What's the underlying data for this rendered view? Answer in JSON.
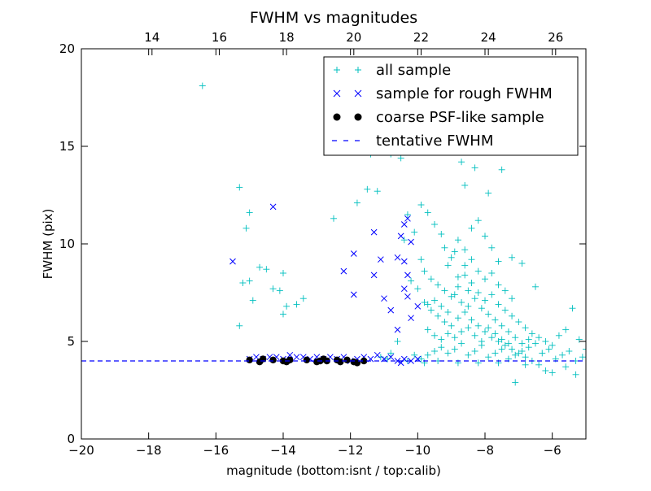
{
  "chart_data": {
    "type": "scatter",
    "title": "FWHM vs magnitudes",
    "xlabel": "magnitude (bottom:isnt / top:calib)",
    "ylabel": "FWHM (pix)",
    "xlim": [
      -20,
      -5
    ],
    "ylim": [
      0,
      20
    ],
    "x_ticks": [
      -20,
      -18,
      -16,
      -14,
      -12,
      -10,
      -8,
      -6
    ],
    "x_tick_labels": [
      "−20",
      "−18",
      "−16",
      "−14",
      "−12",
      "−10",
      "−8",
      "−6"
    ],
    "y_ticks": [
      0,
      5,
      10,
      15,
      20
    ],
    "y_tick_labels": [
      "0",
      "5",
      "10",
      "15",
      "20"
    ],
    "top_axis": {
      "ticks": [
        14,
        16,
        18,
        20,
        22,
        24,
        26
      ],
      "tick_labels": [
        "14",
        "16",
        "18",
        "20",
        "22",
        "24",
        "26"
      ],
      "offset": 31.9
    },
    "grid": false,
    "legend_position": "top-right",
    "colors": {
      "all": "#00bfbf",
      "rough": "#0000ff",
      "coarse": "#000000",
      "tentative": "#0000ff"
    },
    "series": [
      {
        "name": "all sample",
        "marker": "plus",
        "color": "#00bfbf",
        "points": [
          [
            -16.4,
            18.1
          ],
          [
            -15.3,
            12.9
          ],
          [
            -15.0,
            11.6
          ],
          [
            -15.1,
            10.8
          ],
          [
            -15.0,
            8.1
          ],
          [
            -15.2,
            8.0
          ],
          [
            -14.7,
            8.8
          ],
          [
            -14.5,
            8.7
          ],
          [
            -14.9,
            7.1
          ],
          [
            -15.3,
            5.8
          ],
          [
            -14.3,
            7.7
          ],
          [
            -14.1,
            7.6
          ],
          [
            -14.0,
            8.5
          ],
          [
            -13.9,
            6.8
          ],
          [
            -13.6,
            6.9
          ],
          [
            -13.4,
            7.2
          ],
          [
            -14.0,
            6.4
          ],
          [
            -12.5,
            11.3
          ],
          [
            -11.8,
            12.1
          ],
          [
            -11.5,
            12.8
          ],
          [
            -11.2,
            12.7
          ],
          [
            -11.4,
            14.6
          ],
          [
            -10.8,
            14.6
          ],
          [
            -10.5,
            14.4
          ],
          [
            -10.6,
            15.1
          ],
          [
            -9.4,
            18.0
          ],
          [
            -9.1,
            16.8
          ],
          [
            -9.0,
            14.9
          ],
          [
            -8.5,
            15.8
          ],
          [
            -8.2,
            15.0
          ],
          [
            -8.7,
            14.2
          ],
          [
            -8.3,
            13.9
          ],
          [
            -7.5,
            13.8
          ],
          [
            -7.9,
            12.6
          ],
          [
            -8.6,
            13.0
          ],
          [
            -10.3,
            11.5
          ],
          [
            -10.4,
            10.2
          ],
          [
            -10.1,
            10.6
          ],
          [
            -9.9,
            12.0
          ],
          [
            -9.7,
            11.6
          ],
          [
            -9.5,
            11.0
          ],
          [
            -9.3,
            10.5
          ],
          [
            -9.2,
            9.8
          ],
          [
            -9.0,
            9.3
          ],
          [
            -8.8,
            10.2
          ],
          [
            -8.6,
            9.7
          ],
          [
            -8.4,
            10.8
          ],
          [
            -8.2,
            11.2
          ],
          [
            -8.0,
            10.4
          ],
          [
            -7.8,
            9.8
          ],
          [
            -7.6,
            9.1
          ],
          [
            -7.2,
            9.3
          ],
          [
            -6.9,
            9.0
          ],
          [
            -6.5,
            7.8
          ],
          [
            -9.9,
            9.2
          ],
          [
            -9.8,
            8.6
          ],
          [
            -9.6,
            8.2
          ],
          [
            -9.4,
            7.9
          ],
          [
            -9.2,
            7.6
          ],
          [
            -9.0,
            7.3
          ],
          [
            -8.8,
            7.8
          ],
          [
            -8.6,
            8.4
          ],
          [
            -8.4,
            8.0
          ],
          [
            -8.2,
            7.5
          ],
          [
            -8.0,
            7.1
          ],
          [
            -7.8,
            7.4
          ],
          [
            -7.6,
            6.9
          ],
          [
            -7.4,
            6.6
          ],
          [
            -7.2,
            6.3
          ],
          [
            -7.0,
            6.0
          ],
          [
            -6.8,
            5.7
          ],
          [
            -6.6,
            5.4
          ],
          [
            -6.4,
            5.2
          ],
          [
            -6.2,
            5.0
          ],
          [
            -6.0,
            4.8
          ],
          [
            -5.8,
            5.3
          ],
          [
            -5.6,
            5.6
          ],
          [
            -5.4,
            6.7
          ],
          [
            -5.2,
            5.1
          ],
          [
            -5.0,
            4.6
          ],
          [
            -10.2,
            8.1
          ],
          [
            -10.0,
            7.7
          ],
          [
            -9.8,
            7.0
          ],
          [
            -9.6,
            6.6
          ],
          [
            -9.4,
            6.3
          ],
          [
            -9.2,
            6.0
          ],
          [
            -9.0,
            5.8
          ],
          [
            -8.8,
            6.2
          ],
          [
            -8.6,
            6.5
          ],
          [
            -8.4,
            6.1
          ],
          [
            -8.2,
            5.8
          ],
          [
            -8.0,
            5.5
          ],
          [
            -7.8,
            5.2
          ],
          [
            -7.6,
            5.0
          ],
          [
            -7.4,
            4.8
          ],
          [
            -7.2,
            4.6
          ],
          [
            -7.0,
            4.4
          ],
          [
            -6.8,
            4.2
          ],
          [
            -6.6,
            4.0
          ],
          [
            -6.4,
            3.8
          ],
          [
            -6.2,
            3.5
          ],
          [
            -6.0,
            3.4
          ],
          [
            -5.6,
            3.7
          ],
          [
            -5.3,
            3.3
          ],
          [
            -7.1,
            2.9
          ],
          [
            -9.9,
            4.1
          ],
          [
            -9.7,
            4.3
          ],
          [
            -9.5,
            4.5
          ],
          [
            -9.3,
            4.7
          ],
          [
            -9.1,
            4.4
          ],
          [
            -8.9,
            4.6
          ],
          [
            -8.7,
            4.9
          ],
          [
            -8.5,
            4.3
          ],
          [
            -8.3,
            4.5
          ],
          [
            -8.1,
            4.8
          ],
          [
            -7.9,
            4.2
          ],
          [
            -7.7,
            4.4
          ],
          [
            -7.5,
            4.6
          ],
          [
            -7.3,
            4.1
          ],
          [
            -7.1,
            4.3
          ],
          [
            -6.9,
            4.5
          ],
          [
            -6.7,
            4.7
          ],
          [
            -6.5,
            4.9
          ],
          [
            -6.3,
            4.4
          ],
          [
            -6.1,
            4.6
          ],
          [
            -5.9,
            4.1
          ],
          [
            -5.7,
            4.3
          ],
          [
            -5.5,
            4.5
          ],
          [
            -5.3,
            4.0
          ],
          [
            -5.1,
            4.2
          ],
          [
            -9.7,
            6.9
          ],
          [
            -9.5,
            7.1
          ],
          [
            -9.3,
            6.8
          ],
          [
            -9.1,
            6.5
          ],
          [
            -8.9,
            7.4
          ],
          [
            -8.7,
            7.0
          ],
          [
            -8.5,
            6.8
          ],
          [
            -8.3,
            7.2
          ],
          [
            -8.1,
            6.7
          ],
          [
            -7.9,
            6.4
          ],
          [
            -7.7,
            6.1
          ],
          [
            -7.5,
            5.8
          ],
          [
            -7.3,
            5.5
          ],
          [
            -7.1,
            5.2
          ],
          [
            -6.9,
            4.9
          ],
          [
            -6.7,
            5.1
          ],
          [
            -9.7,
            5.6
          ],
          [
            -9.5,
            5.3
          ],
          [
            -9.3,
            5.1
          ],
          [
            -9.1,
            5.4
          ],
          [
            -8.9,
            5.2
          ],
          [
            -8.7,
            5.5
          ],
          [
            -8.5,
            5.7
          ],
          [
            -8.3,
            5.3
          ],
          [
            -8.1,
            5.0
          ],
          [
            -7.9,
            5.7
          ],
          [
            -7.7,
            5.4
          ],
          [
            -7.5,
            5.1
          ],
          [
            -7.3,
            4.9
          ],
          [
            -8.6,
            8.9
          ],
          [
            -8.4,
            9.2
          ],
          [
            -8.2,
            8.6
          ],
          [
            -8.0,
            8.2
          ],
          [
            -7.8,
            8.5
          ],
          [
            -7.6,
            7.9
          ],
          [
            -7.4,
            7.6
          ],
          [
            -7.2,
            7.2
          ],
          [
            -8.9,
            9.6
          ],
          [
            -9.1,
            8.9
          ],
          [
            -8.8,
            8.3
          ],
          [
            -8.5,
            7.6
          ],
          [
            -10.1,
            4.3
          ],
          [
            -10.3,
            4.0
          ],
          [
            -9.8,
            3.9
          ],
          [
            -9.4,
            4.0
          ],
          [
            -8.8,
            3.9
          ],
          [
            -8.2,
            3.9
          ],
          [
            -7.6,
            3.9
          ],
          [
            -6.8,
            3.8
          ],
          [
            -10.6,
            5.0
          ],
          [
            -10.8,
            4.4
          ],
          [
            -10.9,
            4.1
          ],
          [
            -11.1,
            4.2
          ]
        ]
      },
      {
        "name": "sample for rough FWHM",
        "marker": "x",
        "color": "#0000ff",
        "points": [
          [
            -15.5,
            9.1
          ],
          [
            -14.3,
            11.9
          ],
          [
            -11.9,
            9.5
          ],
          [
            -11.9,
            7.4
          ],
          [
            -12.2,
            8.6
          ],
          [
            -11.3,
            10.6
          ],
          [
            -11.3,
            8.4
          ],
          [
            -11.1,
            9.2
          ],
          [
            -11.0,
            7.2
          ],
          [
            -10.8,
            6.6
          ],
          [
            -10.6,
            9.3
          ],
          [
            -10.5,
            10.4
          ],
          [
            -10.4,
            11.0
          ],
          [
            -10.3,
            11.3
          ],
          [
            -10.2,
            10.1
          ],
          [
            -10.4,
            9.1
          ],
          [
            -10.3,
            8.4
          ],
          [
            -10.4,
            7.7
          ],
          [
            -10.3,
            7.3
          ],
          [
            -10.6,
            5.6
          ],
          [
            -10.2,
            6.2
          ],
          [
            -10.0,
            6.8
          ],
          [
            -15.0,
            4.1
          ],
          [
            -14.8,
            4.2
          ],
          [
            -14.6,
            4.1
          ],
          [
            -14.4,
            4.2
          ],
          [
            -14.2,
            4.2
          ],
          [
            -14.0,
            4.1
          ],
          [
            -13.8,
            4.3
          ],
          [
            -13.6,
            4.2
          ],
          [
            -13.4,
            4.2
          ],
          [
            -13.2,
            4.1
          ],
          [
            -13.0,
            4.2
          ],
          [
            -12.8,
            4.1
          ],
          [
            -12.6,
            4.2
          ],
          [
            -12.4,
            4.1
          ],
          [
            -12.2,
            4.2
          ],
          [
            -12.0,
            4.0
          ],
          [
            -11.8,
            4.1
          ],
          [
            -11.6,
            4.2
          ],
          [
            -11.4,
            4.1
          ],
          [
            -11.2,
            4.3
          ],
          [
            -11.0,
            4.1
          ],
          [
            -10.8,
            4.2
          ],
          [
            -10.6,
            4.0
          ],
          [
            -10.4,
            4.1
          ],
          [
            -10.2,
            4.0
          ],
          [
            -10.0,
            4.1
          ],
          [
            -10.5,
            3.9
          ]
        ]
      },
      {
        "name": "coarse PSF-like sample",
        "marker": "dot",
        "color": "#000000",
        "points": [
          [
            -15.0,
            4.05
          ],
          [
            -14.7,
            3.95
          ],
          [
            -14.6,
            4.1
          ],
          [
            -14.3,
            4.05
          ],
          [
            -14.0,
            4.0
          ],
          [
            -13.9,
            3.95
          ],
          [
            -13.8,
            4.05
          ],
          [
            -13.3,
            4.05
          ],
          [
            -13.0,
            3.95
          ],
          [
            -12.9,
            4.0
          ],
          [
            -12.8,
            4.1
          ],
          [
            -12.7,
            4.0
          ],
          [
            -12.4,
            4.05
          ],
          [
            -12.3,
            3.95
          ],
          [
            -12.1,
            4.05
          ],
          [
            -11.9,
            3.95
          ],
          [
            -11.8,
            3.9
          ],
          [
            -11.6,
            4.0
          ]
        ]
      },
      {
        "name": "tentative FWHM",
        "marker": "dashed-line",
        "color": "#0000ff",
        "y": 4.0
      }
    ]
  }
}
